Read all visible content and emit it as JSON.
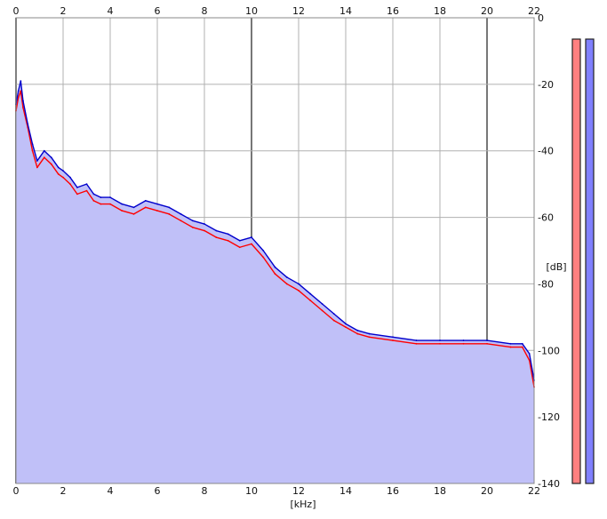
{
  "chart_data": {
    "type": "area",
    "xlabel": "[kHz]",
    "ylabel": "[dB]",
    "xlim": [
      0,
      22
    ],
    "ylim": [
      -140,
      0
    ],
    "x_ticks": [
      "0",
      "2",
      "4",
      "6",
      "8",
      "10",
      "12",
      "14",
      "16",
      "18",
      "20",
      "22"
    ],
    "y_ticks": [
      "0",
      "-20",
      "-40",
      "-60",
      "-80",
      "-100",
      "-120",
      "-140"
    ],
    "grid": true,
    "series": [
      {
        "color": "#ff0000",
        "x": [
          0,
          0.1,
          0.2,
          0.3,
          0.5,
          0.7,
          0.9,
          1.2,
          1.5,
          1.8,
          2.0,
          2.3,
          2.6,
          3.0,
          3.3,
          3.6,
          4.0,
          4.5,
          5.0,
          5.5,
          6.0,
          6.5,
          7.0,
          7.5,
          8.0,
          8.5,
          9.0,
          9.5,
          10.0,
          10.5,
          11.0,
          11.5,
          12.0,
          12.5,
          13.0,
          13.5,
          14.0,
          14.5,
          15.0,
          16.0,
          17.0,
          18.0,
          19.0,
          20.0,
          21.0,
          21.5,
          21.8,
          22.0
        ],
        "values": [
          -28,
          -24,
          -22,
          -27,
          -33,
          -40,
          -45,
          -42,
          -44,
          -47,
          -48,
          -50,
          -53,
          -52,
          -55,
          -56,
          -56,
          -58,
          -59,
          -57,
          -58,
          -59,
          -61,
          -63,
          -64,
          -66,
          -67,
          -69,
          -68,
          -72,
          -77,
          -80,
          -82,
          -85,
          -88,
          -91,
          -93,
          -95,
          -96,
          -97,
          -98,
          -98,
          -98,
          -98,
          -99,
          -99,
          -103,
          -111
        ]
      },
      {
        "color": "#0000cc",
        "x": [
          0,
          0.1,
          0.2,
          0.3,
          0.5,
          0.7,
          0.9,
          1.2,
          1.5,
          1.8,
          2.0,
          2.3,
          2.6,
          3.0,
          3.3,
          3.6,
          4.0,
          4.5,
          5.0,
          5.5,
          6.0,
          6.5,
          7.0,
          7.5,
          8.0,
          8.5,
          9.0,
          9.5,
          10.0,
          10.5,
          11.0,
          11.5,
          12.0,
          12.5,
          13.0,
          13.5,
          14.0,
          14.5,
          15.0,
          16.0,
          17.0,
          18.0,
          19.0,
          20.0,
          21.0,
          21.5,
          21.8,
          22.0
        ],
        "values": [
          -26,
          -22,
          -19,
          -25,
          -32,
          -38,
          -43,
          -40,
          -42,
          -45,
          -46,
          -48,
          -51,
          -50,
          -53,
          -54,
          -54,
          -56,
          -57,
          -55,
          -56,
          -57,
          -59,
          -61,
          -62,
          -64,
          -65,
          -67,
          -66,
          -70,
          -75,
          -78,
          -80,
          -83,
          -86,
          -89,
          -92,
          -94,
          -95,
          -96,
          -97,
          -97,
          -97,
          -97,
          -98,
          -98,
          -101,
          -109
        ]
      }
    ],
    "level_meters": [
      {
        "color": "#ff8080",
        "value": 0
      },
      {
        "color": "#8080ff",
        "value": 0
      }
    ]
  }
}
